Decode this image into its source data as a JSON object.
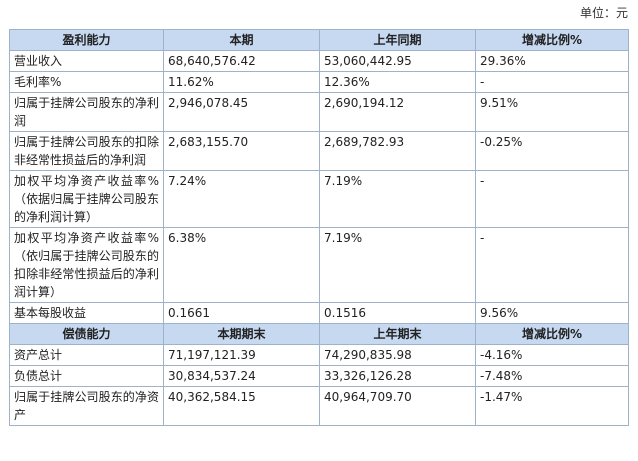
{
  "unit_label": "单位：元",
  "section1": {
    "headers": [
      "盈利能力",
      "本期",
      "上年同期",
      "增减比例%"
    ],
    "rows": [
      {
        "label": "营业收入",
        "current": "68,640,576.42",
        "previous": "53,060,442.95",
        "change": "29.36%"
      },
      {
        "label": "毛利率%",
        "current": "11.62%",
        "previous": "12.36%",
        "change": "-"
      },
      {
        "label": "归属于挂牌公司股东的净利润",
        "current": "2,946,078.45",
        "previous": "2,690,194.12",
        "change": "9.51%"
      },
      {
        "label": "归属于挂牌公司股东的扣除非经常性损益后的净利润",
        "current": "2,683,155.70",
        "previous": "2,689,782.93",
        "change": "-0.25%"
      },
      {
        "label": "加权平均净资产收益率%（依据归属于挂牌公司股东的净利润计算）",
        "current": "7.24%",
        "previous": "7.19%",
        "change": "-"
      },
      {
        "label": "加权平均净资产收益率%（依归属于挂牌公司股东的扣除非经常性损益后的净利润计算）",
        "current": "6.38%",
        "previous": "7.19%",
        "change": "-"
      },
      {
        "label": "基本每股收益",
        "current": "0.1661",
        "previous": "0.1516",
        "change": "9.56%"
      }
    ]
  },
  "section2": {
    "headers": [
      "偿债能力",
      "本期期末",
      "上年期末",
      "增减比例%"
    ],
    "rows": [
      {
        "label": "资产总计",
        "current": "71,197,121.39",
        "previous": "74,290,835.98",
        "change": "-4.16%"
      },
      {
        "label": "负债总计",
        "current": "30,834,537.24",
        "previous": "33,326,126.28",
        "change": "-7.48%"
      },
      {
        "label": "归属于挂牌公司股东的净资产",
        "current": "40,362,584.15",
        "previous": "40,964,709.70",
        "change": "-1.47%"
      }
    ]
  }
}
